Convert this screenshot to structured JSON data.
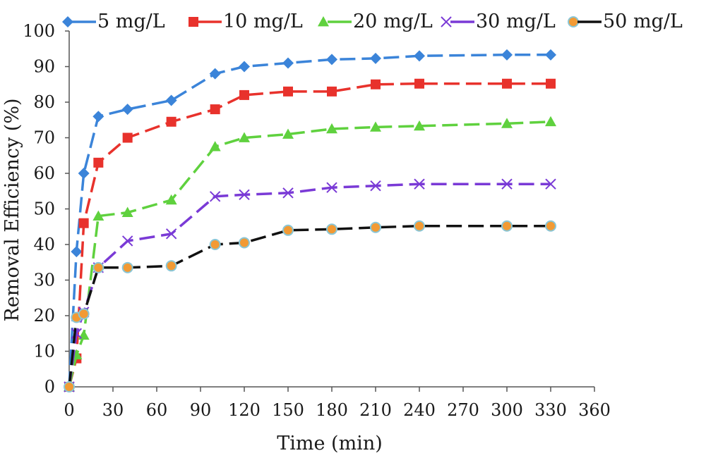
{
  "chart_data": {
    "type": "line",
    "xlabel": "Time (min)",
    "ylabel": "Removal Efficiency (%)",
    "xlim": [
      0,
      360
    ],
    "ylim": [
      0,
      100
    ],
    "xticks": [
      "0",
      "30",
      "60",
      "90",
      "120",
      "150",
      "180",
      "210",
      "240",
      "270",
      "300",
      "330",
      "360"
    ],
    "yticks": [
      "0",
      "10",
      "20",
      "30",
      "40",
      "50",
      "60",
      "70",
      "80",
      "90",
      "100"
    ],
    "grid": false,
    "legend_position": "top",
    "x": [
      0,
      5,
      10,
      20,
      40,
      70,
      100,
      120,
      150,
      180,
      210,
      240,
      300,
      330
    ],
    "series": [
      {
        "name": "5 mg/L",
        "color": "#3b84d9",
        "marker": "diamond",
        "values": [
          0,
          38,
          60,
          76,
          78,
          80.5,
          88,
          90,
          91,
          92,
          92.3,
          93,
          93.3,
          93.3
        ]
      },
      {
        "name": "10 mg/L",
        "color": "#e8322c",
        "marker": "square",
        "values": [
          0,
          8,
          46,
          63,
          70,
          74.5,
          78,
          82,
          83,
          83,
          85,
          85.2,
          85.2,
          85.2
        ]
      },
      {
        "name": "20 mg/L",
        "color": "#5fd13e",
        "marker": "triangle",
        "values": [
          0,
          9,
          14.5,
          48,
          49,
          52.5,
          67.5,
          70,
          71,
          72.5,
          73,
          73.3,
          74,
          74.5
        ]
      },
      {
        "name": "30 mg/L",
        "color": "#7a3ad6",
        "marker": "x",
        "values": [
          0,
          15,
          21,
          33.5,
          41,
          43,
          53.5,
          54,
          54.5,
          56,
          56.5,
          57,
          57,
          57
        ]
      },
      {
        "name": "50 mg/L",
        "color": "#111111",
        "marker": "circle",
        "marker_fill": "#f29a34",
        "marker_stroke": "#8ac6d6",
        "values": [
          0,
          19.5,
          20.5,
          33.5,
          33.5,
          34,
          40,
          40.5,
          44,
          44.3,
          44.8,
          45.2,
          45.2,
          45.2
        ]
      }
    ]
  }
}
